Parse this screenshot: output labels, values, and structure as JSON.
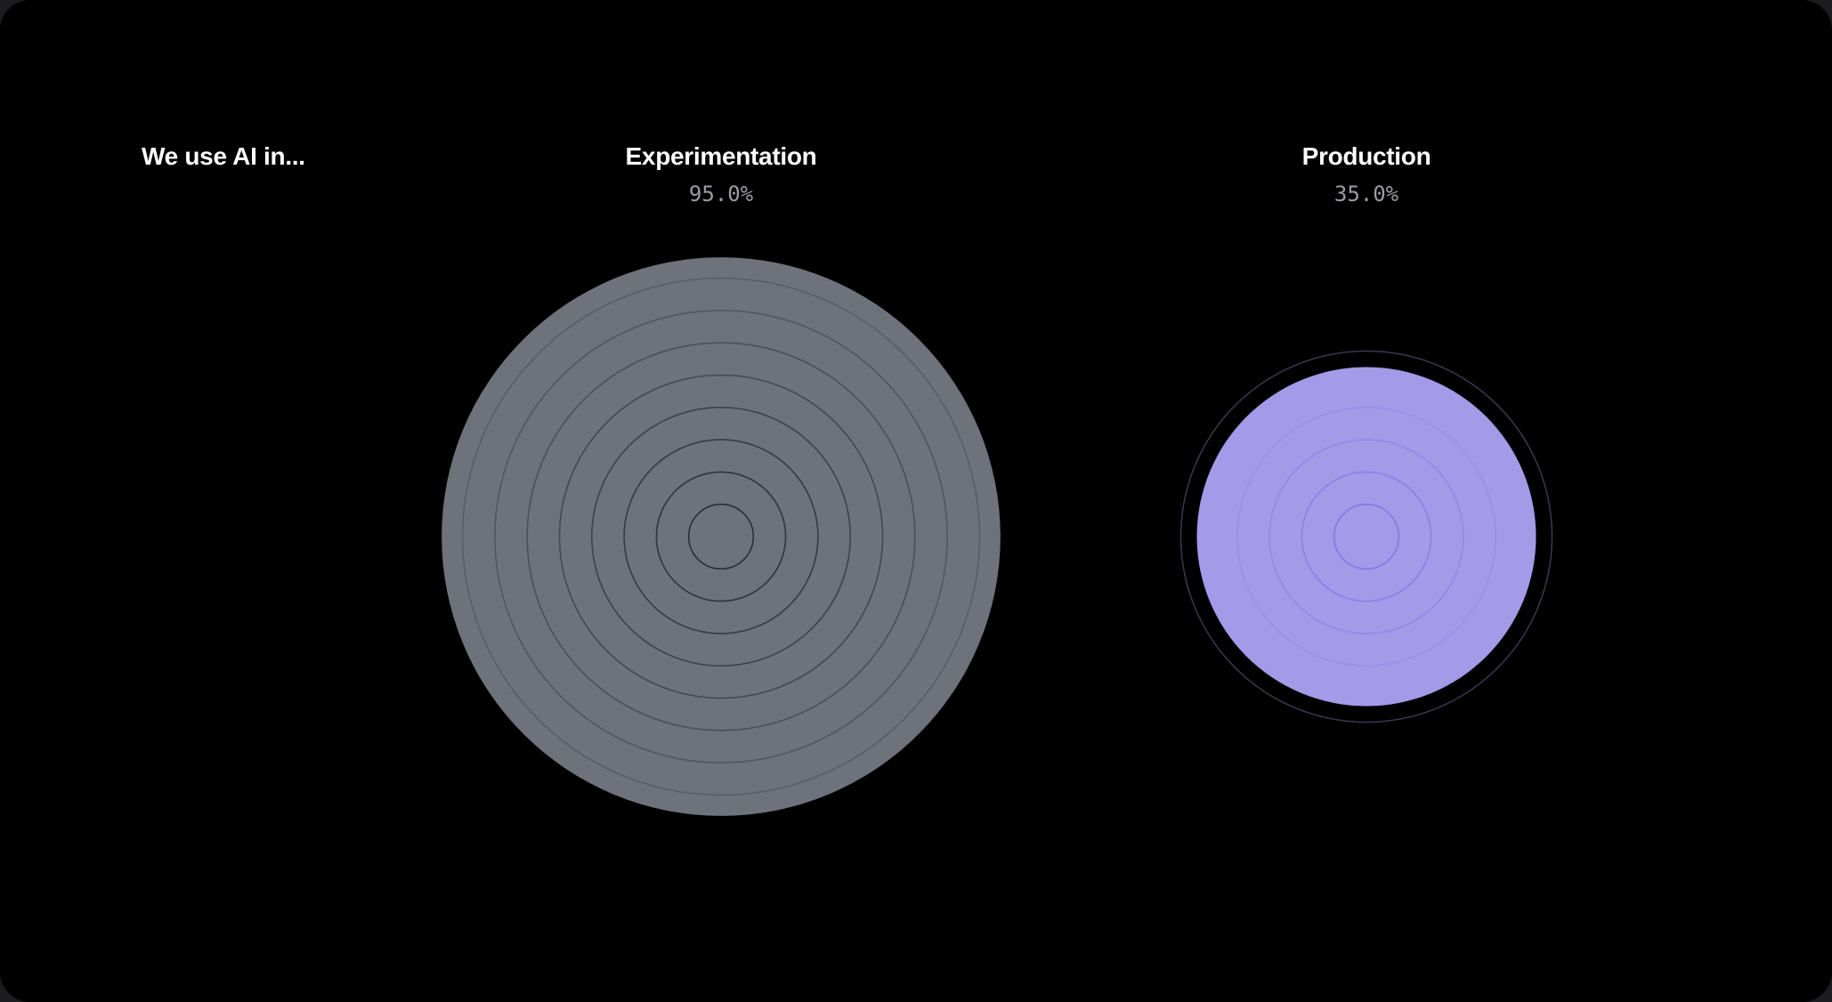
{
  "heading": "We use AI in...",
  "chart_data": {
    "type": "proportional-area",
    "title": "We use AI in...",
    "categories": [
      "Experimentation",
      "Production"
    ],
    "values": [
      95.0,
      35.0
    ],
    "value_labels": [
      "95.0%",
      "35.0%"
    ],
    "unit": "%",
    "colors": [
      "#6e727b",
      "#a39ae8"
    ],
    "ring_colors": [
      "#2a2d36",
      "#8678e6"
    ],
    "outline_color": "#3a3950"
  }
}
